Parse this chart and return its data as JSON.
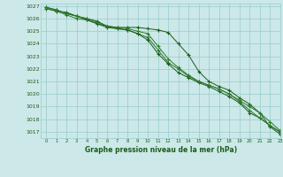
{
  "hours": [
    0,
    1,
    2,
    3,
    4,
    5,
    6,
    7,
    8,
    9,
    10,
    11,
    12,
    13,
    14,
    15,
    16,
    17,
    18,
    19,
    20,
    21,
    22,
    23
  ],
  "line1": [
    1026.8,
    1026.6,
    1026.5,
    1026.2,
    1026.0,
    1025.8,
    1025.4,
    1025.3,
    1025.3,
    1025.3,
    1025.2,
    1025.1,
    1024.9,
    1024.0,
    1023.1,
    1021.8,
    1021.0,
    1020.6,
    1020.3,
    1019.7,
    1019.2,
    1018.5,
    1017.4,
    1016.8
  ],
  "line2": [
    1026.8,
    1026.6,
    1026.3,
    1026.0,
    1025.9,
    1025.6,
    1025.4,
    1025.2,
    1025.1,
    1024.8,
    1024.5,
    1023.5,
    1022.5,
    1022.0,
    1021.4,
    1021.0,
    1020.7,
    1020.4,
    1020.0,
    1019.5,
    1019.0,
    1018.5,
    1017.8,
    1017.1
  ],
  "line3": [
    1026.9,
    1026.7,
    1026.4,
    1026.2,
    1025.9,
    1025.6,
    1025.3,
    1025.2,
    1025.1,
    1024.8,
    1024.3,
    1023.2,
    1022.4,
    1021.7,
    1021.3,
    1020.9,
    1020.6,
    1020.2,
    1019.8,
    1019.3,
    1018.5,
    1018.1,
    1017.5,
    1017.0
  ],
  "line4": [
    1026.9,
    1026.7,
    1026.4,
    1026.2,
    1026.0,
    1025.7,
    1025.4,
    1025.3,
    1025.2,
    1025.0,
    1024.8,
    1023.8,
    1022.8,
    1022.1,
    1021.5,
    1021.0,
    1020.7,
    1020.4,
    1020.0,
    1019.4,
    1018.7,
    1018.1,
    1017.5,
    1016.95
  ],
  "bg_color": "#cce8e8",
  "grid_color": "#99cccc",
  "line_color": "#1a5c1a",
  "line_color2": "#2d7a2d",
  "xlabel": "Graphe pression niveau de la mer (hPa)",
  "ylim": [
    1016.5,
    1027.2
  ],
  "xlim": [
    -0.5,
    23
  ],
  "yticks": [
    1017,
    1018,
    1019,
    1020,
    1021,
    1022,
    1023,
    1024,
    1025,
    1026,
    1027
  ],
  "xticks": [
    0,
    1,
    2,
    3,
    4,
    5,
    6,
    7,
    8,
    9,
    10,
    11,
    12,
    13,
    14,
    15,
    16,
    17,
    18,
    19,
    20,
    21,
    22,
    23
  ]
}
